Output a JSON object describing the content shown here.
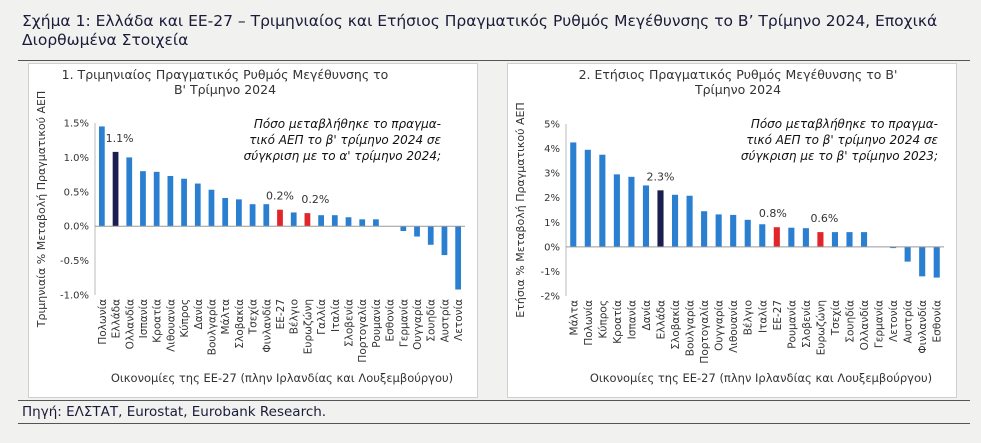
{
  "figure": {
    "title": "Σχήμα 1: Ελλάδα και ΕΕ-27 – Τριμηνιαίος και Ετήσιος Πραγματικός Ρυθμός Μεγέθυνσης το Β’ Τρίμηνο 2024, Εποχικά Διορθωμένα Στοιχεία",
    "source": "Πηγή: ΕΛΣΤΑΤ, Eurostat, Eurobank Research."
  },
  "colors": {
    "default": "#2b7fd0",
    "greece": "#1a1f4f",
    "eu": "#e0262a"
  },
  "chart_data": [
    {
      "type": "bar",
      "title": [
        "1. Τριμηνιαίος Πραγματικός Ρυθμός Μεγέθυνσης το",
        "Β' Τρίμηνο 2024"
      ],
      "ylabel": "Τριμηνιαία % Μεταβολή Πραγματικού ΑΕΠ",
      "xlabel": "Οικονομίες της ΕΕ-27 (πλην Ιρλανδίας και Λουξεμβούργου)",
      "annotation": [
        "Πόσο μεταβλήθηκε το πραγμα-",
        "τικό ΑΕΠ το β' τρίμηνο 2024 σε",
        "σύγκριση με το α' τρίμηνο 2024;"
      ],
      "ylim": [
        -1.0,
        1.5
      ],
      "yticks": [
        -1.0,
        -0.5,
        0.0,
        0.5,
        1.0,
        1.5
      ],
      "ytick_labels": [
        "-1.0%",
        "-0.5%",
        "0.0%",
        "0.5%",
        "1.0%",
        "1.5%"
      ],
      "categories": [
        "Πολωνία",
        "Ελλάδα",
        "Ολλανδία",
        "Ισπανία",
        "Κροατία",
        "Λιθουανία",
        "Κύπρος",
        "Δανία",
        "Βουλγαρία",
        "Μάλτα",
        "Σλοβακία",
        "Τσεχία",
        "Φινλανδία",
        "ΕΕ-27",
        "Βέλγιο",
        "Ευρωζώνη",
        "Γαλλία",
        "Ιταλία",
        "Σλοβενία",
        "Πορτογαλία",
        "Ρουμανία",
        "Εσθονία",
        "Γερμανία",
        "Ουγγαρία",
        "Σουηδία",
        "Αυστρία",
        "Λετονία"
      ],
      "values": [
        1.45,
        1.08,
        1.0,
        0.8,
        0.79,
        0.73,
        0.69,
        0.62,
        0.53,
        0.41,
        0.39,
        0.32,
        0.32,
        0.24,
        0.2,
        0.19,
        0.16,
        0.16,
        0.13,
        0.1,
        0.1,
        0.0,
        -0.07,
        -0.15,
        -0.27,
        -0.42,
        -0.92
      ],
      "highlight": {
        "Ελλάδα": "greece",
        "ΕΕ-27": "eu",
        "Ευρωζώνη": "eu"
      },
      "data_labels": [
        {
          "category": "Ελλάδα",
          "text": "1.1%"
        },
        {
          "category": "ΕΕ-27",
          "text": "0.2%"
        },
        {
          "category": "Ευρωζώνη",
          "text": "0.2%"
        }
      ]
    },
    {
      "type": "bar",
      "title": [
        "2. Ετήσιος Πραγματικός Ρυθμός Μεγέθυνσης το Β'",
        "Τρίμηνο 2024"
      ],
      "ylabel": "Ετήσια % Μεταβολή Πραγματικού ΑΕΠ",
      "xlabel": "Οικονομίες της ΕΕ-27 (πλην Ιρλανδίας και Λουξεμβούργου)",
      "annotation": [
        "Πόσο μεταβλήθηκε το πραγμα-",
        "τικό ΑΕΠ το β' τρίμηνο 2024 σε",
        "σύγκριση με το β' τρίμηνο 2023;"
      ],
      "ylim": [
        -2,
        5
      ],
      "yticks": [
        -2,
        -1,
        0,
        1,
        2,
        3,
        4,
        5
      ],
      "ytick_labels": [
        "-2%",
        "-1%",
        "0%",
        "1%",
        "2%",
        "3%",
        "4%",
        "5%"
      ],
      "categories": [
        "Μάλτα",
        "Πολωνία",
        "Κύπρος",
        "Κροατία",
        "Ισπανία",
        "Δανία",
        "Ελλάδα",
        "Σλοβακία",
        "Βουλγαρία",
        "Πορτογαλία",
        "Ουγγαρία",
        "Λιθουανία",
        "Βέλγιο",
        "Ιταλία",
        "ΕΕ-27",
        "Ρουμανία",
        "Σλοβενία",
        "Ευρωζώνη",
        "Τσεχία",
        "Σουηδία",
        "Ολλανδία",
        "Γερμανία",
        "Λετονία",
        "Αυστρία",
        "Φινλανδία",
        "Εσθονία"
      ],
      "values": [
        4.25,
        3.95,
        3.75,
        2.95,
        2.85,
        2.5,
        2.3,
        2.12,
        2.08,
        1.45,
        1.32,
        1.3,
        1.1,
        0.92,
        0.8,
        0.78,
        0.76,
        0.6,
        0.6,
        0.6,
        0.6,
        0.0,
        -0.05,
        -0.6,
        -1.2,
        -1.25
      ],
      "highlight": {
        "Ελλάδα": "greece",
        "ΕΕ-27": "eu",
        "Ευρωζώνη": "eu"
      },
      "data_labels": [
        {
          "category": "Ελλάδα",
          "text": "2.3%"
        },
        {
          "category": "ΕΕ-27",
          "text": "0.8%"
        },
        {
          "category": "Ευρωζώνη",
          "text": "0.6%"
        }
      ]
    }
  ]
}
